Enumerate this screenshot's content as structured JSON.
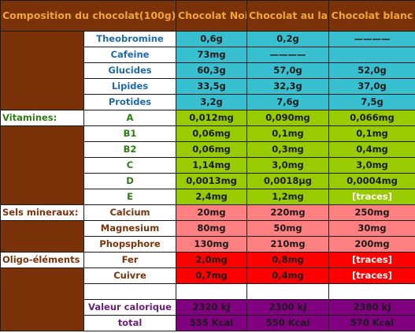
{
  "header": {
    "title": "Composition du chocolat(100g)",
    "noir": "Chocolat Noir",
    "lait": "Chocolat au lait",
    "blanc": "Chocolat blanc"
  },
  "groups": {
    "vitamines": "Vitamines:",
    "sels": "Sels mineraux:",
    "oligo": "Oligo-éléments"
  },
  "rows": [
    {
      "label": "Theobromine",
      "noir": "0,6g",
      "lait": "0,2g",
      "blanc": "————"
    },
    {
      "label": "Cafeine",
      "noir": "73mg",
      "lait": "————",
      "blanc": ""
    },
    {
      "label": "Glucides",
      "noir": "60,3g",
      "lait": "57,0g",
      "blanc": "52,0g"
    },
    {
      "label": "Lipides",
      "noir": "33,5g",
      "lait": "32,3g",
      "blanc": "37,0g"
    },
    {
      "label": "Protides",
      "noir": "3,2g",
      "lait": "7,6g",
      "blanc": "7,5g"
    },
    {
      "label": "A",
      "noir": "0,012mg",
      "lait": "0,090mg",
      "blanc": "0,066mg"
    },
    {
      "label": "B1",
      "noir": "0,06mg",
      "lait": "0,1mg",
      "blanc": "0,1mg"
    },
    {
      "label": "B2",
      "noir": "0,06mg",
      "lait": "0,3mg",
      "blanc": "0,4mg"
    },
    {
      "label": "C",
      "noir": "1,14mg",
      "lait": "3,0mg",
      "blanc": "3,0mg"
    },
    {
      "label": "D",
      "noir": "0,0013mg",
      "lait": "0,0018µg",
      "blanc": "0,0004mg"
    },
    {
      "label": "E",
      "noir": "2,4mg",
      "lait": "1,2mg",
      "blanc": "[traces]"
    },
    {
      "label": "Calcium",
      "noir": "20mg",
      "lait": "220mg",
      "blanc": "250mg"
    },
    {
      "label": "Magnesium",
      "noir": "80mg",
      "lait": "50mg",
      "blanc": "30mg"
    },
    {
      "label": "Phopsphore",
      "noir": "130mg",
      "lait": "210mg",
      "blanc": "200mg"
    },
    {
      "label": "Fer",
      "noir": "2,0mg",
      "lait": "0,8mg",
      "blanc": "[traces]"
    },
    {
      "label": "Cuivre",
      "noir": "0,7mg",
      "lait": "0,4mg",
      "blanc": "[traces]"
    },
    {
      "label": "Valeur calorique",
      "noir": "2320 kJ",
      "lait": "2300 kJ",
      "blanc": "2380 kJ"
    },
    {
      "label": "total",
      "noir": "555 Kcal",
      "lait": "550 Kcal",
      "blanc": "570 Kcal"
    }
  ],
  "colors": {
    "brown": "#7a3208",
    "header_text": "#f2a33a",
    "cyan": "#39c0d0",
    "lime": "#99cc00",
    "pink": "#ff8080",
    "red": "#ff0000",
    "purple": "#800080"
  }
}
